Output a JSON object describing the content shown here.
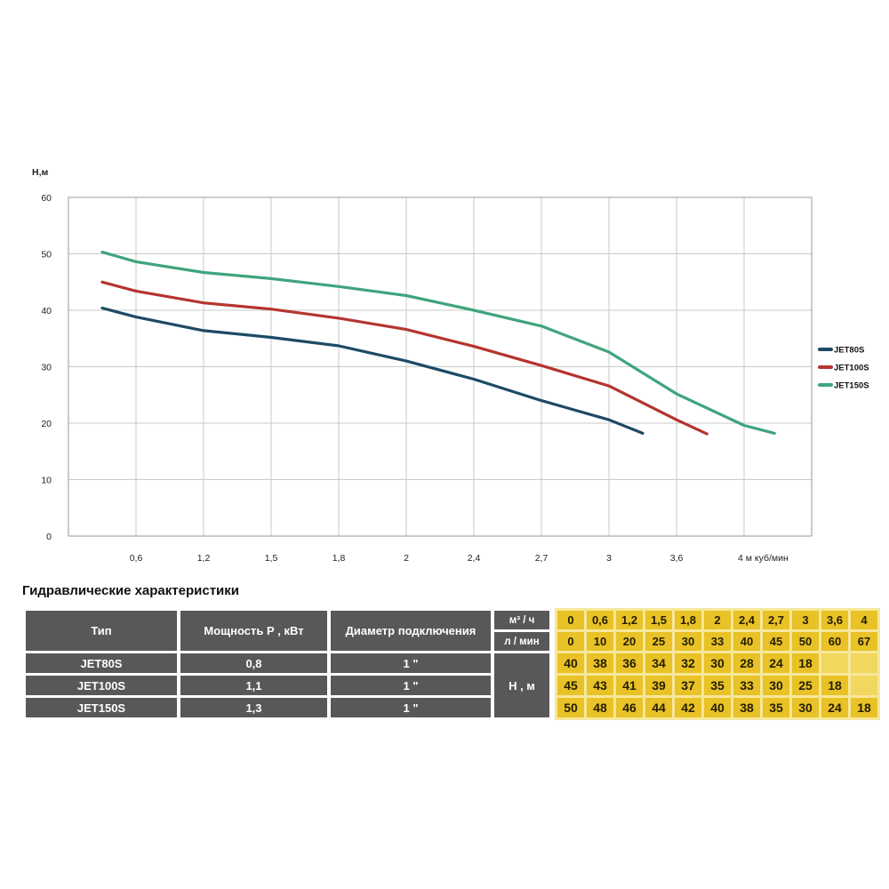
{
  "page": {
    "section_title": "Гидравлические характеристики"
  },
  "chart_data": {
    "type": "line",
    "title": "",
    "ylabel": "Н,м",
    "ylim": [
      0,
      60
    ],
    "yticks": [
      0,
      10,
      20,
      30,
      40,
      50,
      60
    ],
    "x_tick_labels": [
      "0,6",
      "1,2",
      "1,5",
      "1,8",
      "2",
      "2,4",
      "2,7",
      "3",
      "3,6",
      "4 м куб/мин"
    ],
    "x_values_m3h": [
      0,
      0.6,
      1.2,
      1.5,
      1.8,
      2,
      2.4,
      2.7,
      3,
      3.6,
      4
    ],
    "grid": true,
    "legend_position": "right",
    "series": [
      {
        "name": "JET80S",
        "color": "#1d4a66",
        "flow_m3h": [
          0,
          0.6,
          1.2,
          1.5,
          1.8,
          2,
          2.4,
          2.7,
          3
        ],
        "head_m": [
          40,
          38,
          36,
          34,
          32,
          30,
          28,
          24,
          18
        ],
        "draw_points": [
          [
            0.5,
            40.4
          ],
          [
            1,
            38.8
          ],
          [
            2,
            36.4
          ],
          [
            3,
            35.2
          ],
          [
            4,
            33.7
          ],
          [
            5,
            31.0
          ],
          [
            6,
            27.8
          ],
          [
            7,
            24.0
          ],
          [
            8,
            20.6
          ],
          [
            8.5,
            18.2
          ]
        ]
      },
      {
        "name": "JET100S",
        "color": "#b5342f",
        "flow_m3h": [
          0,
          0.6,
          1.2,
          1.5,
          1.8,
          2,
          2.4,
          2.7,
          3,
          3.6
        ],
        "head_m": [
          45,
          43,
          41,
          39,
          37,
          35,
          33,
          30,
          25,
          18
        ],
        "draw_points": [
          [
            0.5,
            45.0
          ],
          [
            1,
            43.4
          ],
          [
            2,
            41.3
          ],
          [
            3,
            40.2
          ],
          [
            4,
            38.6
          ],
          [
            5,
            36.6
          ],
          [
            6,
            33.6
          ],
          [
            7,
            30.2
          ],
          [
            8,
            26.6
          ],
          [
            9,
            20.6
          ],
          [
            9.45,
            18.1
          ]
        ]
      },
      {
        "name": "JET150S",
        "color": "#3fa47c",
        "flow_m3h": [
          0,
          0.6,
          1.2,
          1.5,
          1.8,
          2,
          2.4,
          2.7,
          3,
          3.6,
          4
        ],
        "head_m": [
          50,
          48,
          46,
          44,
          42,
          40,
          38,
          35,
          30,
          24,
          18
        ],
        "draw_points": [
          [
            0.5,
            50.3
          ],
          [
            1,
            48.6
          ],
          [
            2,
            46.7
          ],
          [
            3,
            45.6
          ],
          [
            4,
            44.2
          ],
          [
            5,
            42.6
          ],
          [
            6,
            40.0
          ],
          [
            7,
            37.2
          ],
          [
            8,
            32.6
          ],
          [
            9,
            25.2
          ],
          [
            10,
            19.6
          ],
          [
            10.45,
            18.2
          ]
        ]
      }
    ]
  },
  "table": {
    "col_type": "Тип",
    "col_power": "Мощность Р , кВт",
    "col_diameter": "Диаметр подключения",
    "flow_row_label": "м³ / ч",
    "lpm_row_label": "л / мин",
    "head_label": "Н , м",
    "flow_m3h": [
      "0",
      "0,6",
      "1,2",
      "1,5",
      "1,8",
      "2",
      "2,4",
      "2,7",
      "3",
      "3,6",
      "4"
    ],
    "flow_lmin": [
      "0",
      "10",
      "20",
      "25",
      "30",
      "33",
      "40",
      "45",
      "50",
      "60",
      "67"
    ],
    "rows": [
      {
        "type": "JET80S",
        "power": "0,8",
        "diameter": "1 \"",
        "head": [
          "40",
          "38",
          "36",
          "34",
          "32",
          "30",
          "28",
          "24",
          "18",
          "",
          ""
        ]
      },
      {
        "type": "JET100S",
        "power": "1,1",
        "diameter": "1 \"",
        "head": [
          "45",
          "43",
          "41",
          "39",
          "37",
          "35",
          "33",
          "30",
          "25",
          "18",
          ""
        ]
      },
      {
        "type": "JET150S",
        "power": "1,3",
        "diameter": "1 \"",
        "head": [
          "50",
          "48",
          "46",
          "44",
          "42",
          "40",
          "38",
          "35",
          "30",
          "24",
          "18"
        ]
      }
    ],
    "colors": {
      "header_bg": "#58585a",
      "cell_yellow": "#e8c226",
      "cell_yellow_empty": "#f2d75f",
      "yellow_gap": "#f7e79a"
    }
  }
}
